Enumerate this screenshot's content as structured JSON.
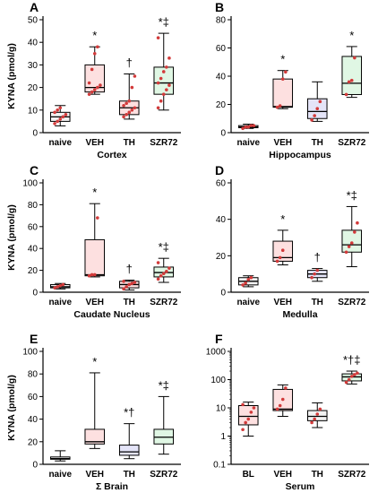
{
  "chart_data": [
    {
      "panel": "A",
      "type": "box",
      "ylabel": "KYNA (pmol/g)",
      "xlabel": "Cortex",
      "ylim": [
        0,
        50
      ],
      "yticks": [
        0,
        10,
        20,
        30,
        40,
        50
      ],
      "categories": [
        "naive",
        "VEH",
        "TH",
        "SZR72"
      ],
      "boxes": [
        {
          "min": 3,
          "q1": 5,
          "median": 7,
          "q3": 9,
          "max": 12,
          "color": "#f2f2f2",
          "points": [
            4,
            5,
            6,
            7,
            8,
            9,
            10,
            11
          ],
          "sig": ""
        },
        {
          "min": 17,
          "q1": 18,
          "median": 20,
          "q3": 30,
          "max": 38,
          "color": "#fde0e0",
          "points": [
            17,
            18,
            19,
            20,
            21,
            22,
            28,
            35,
            38
          ],
          "sig": "*"
        },
        {
          "min": 6,
          "q1": 8,
          "median": 11,
          "q3": 14,
          "max": 26,
          "color": "#fde0e0",
          "points": [
            7,
            8,
            9,
            10,
            11,
            12,
            13,
            14,
            20,
            25
          ],
          "sig": "†"
        },
        {
          "min": 10,
          "q1": 17,
          "median": 22,
          "q3": 29,
          "max": 44,
          "color": "#e0f7e4",
          "points": [
            11,
            14,
            17,
            19,
            21,
            22,
            24,
            27,
            29,
            33,
            42
          ],
          "sig": "*‡"
        }
      ]
    },
    {
      "panel": "B",
      "type": "box",
      "ylabel": "",
      "xlabel": "Hippocampus",
      "ylim": [
        0,
        80
      ],
      "yticks": [
        0,
        20,
        40,
        60,
        80
      ],
      "categories": [
        "naive",
        "VEH",
        "TH",
        "SZR72"
      ],
      "boxes": [
        {
          "min": 3,
          "q1": 3.5,
          "median": 4,
          "q3": 5,
          "max": 6,
          "color": "#f2f2f2",
          "points": [
            3,
            4,
            4,
            5,
            5
          ],
          "sig": ""
        },
        {
          "min": 17,
          "q1": 18,
          "median": 18.5,
          "q3": 38,
          "max": 44,
          "color": "#fde0e0",
          "points": [
            18,
            19,
            38,
            43
          ],
          "sig": "*"
        },
        {
          "min": 8,
          "q1": 10,
          "median": 15,
          "q3": 24,
          "max": 36,
          "color": "#e4e4f8",
          "points": [
            9,
            12,
            17,
            22
          ],
          "sig": ""
        },
        {
          "min": 25,
          "q1": 27,
          "median": 35,
          "q3": 54,
          "max": 61,
          "color": "#e0f7e4",
          "points": [
            27,
            36,
            37,
            53
          ],
          "sig": "*"
        }
      ]
    },
    {
      "panel": "C",
      "type": "box",
      "ylabel": "KYNA (pmol/g)",
      "xlabel": "Caudate Nucleus",
      "ylim": [
        0,
        100
      ],
      "yticks": [
        0,
        20,
        40,
        60,
        80,
        100
      ],
      "categories": [
        "naive",
        "VEH",
        "TH",
        "SZR72"
      ],
      "boxes": [
        {
          "min": 3,
          "q1": 4,
          "median": 5,
          "q3": 7,
          "max": 8,
          "color": "#f2f2f2",
          "points": [
            4,
            5,
            6,
            7
          ],
          "sig": ""
        },
        {
          "min": 14,
          "q1": 15,
          "median": 16,
          "q3": 48,
          "max": 81,
          "color": "#fde0e0",
          "points": [
            15,
            16,
            16,
            68
          ],
          "sig": "*"
        },
        {
          "min": 2,
          "q1": 4,
          "median": 7,
          "q3": 10,
          "max": 11,
          "color": "#fde0e0",
          "points": [
            3,
            5,
            7,
            8,
            9,
            10
          ],
          "sig": "†"
        },
        {
          "min": 9,
          "q1": 14,
          "median": 18,
          "q3": 23,
          "max": 31,
          "color": "#e0f7e4",
          "points": [
            12,
            15,
            17,
            19,
            22,
            27
          ],
          "sig": "*‡"
        }
      ]
    },
    {
      "panel": "D",
      "type": "box",
      "ylabel": "",
      "xlabel": "Medulla",
      "ylim": [
        0,
        60
      ],
      "yticks": [
        0,
        20,
        40,
        60
      ],
      "categories": [
        "naive",
        "VEH",
        "TH",
        "SZR72"
      ],
      "boxes": [
        {
          "min": 3,
          "q1": 4,
          "median": 6,
          "q3": 8,
          "max": 9,
          "color": "#f2f2f2",
          "points": [
            4,
            5,
            7,
            8
          ],
          "sig": ""
        },
        {
          "min": 15,
          "q1": 17,
          "median": 19,
          "q3": 28,
          "max": 34,
          "color": "#fde0e0",
          "points": [
            17,
            19,
            23
          ],
          "sig": "*"
        },
        {
          "min": 6,
          "q1": 8,
          "median": 10,
          "q3": 12,
          "max": 13,
          "color": "#e4e4f8",
          "points": [
            8,
            10,
            12
          ],
          "sig": "†"
        },
        {
          "min": 14,
          "q1": 22,
          "median": 26,
          "q3": 34,
          "max": 47,
          "color": "#e0f7e4",
          "points": [
            22,
            25,
            27,
            33,
            38
          ],
          "sig": "*‡"
        }
      ]
    },
    {
      "panel": "E",
      "type": "box",
      "ylabel": "KYNA (pmol/g)",
      "xlabel": "Σ Brain",
      "ylim": [
        0,
        100
      ],
      "yticks": [
        0,
        20,
        40,
        60,
        80,
        100
      ],
      "categories": [
        "naive",
        "VEH",
        "TH",
        "SZR72"
      ],
      "boxes": [
        {
          "min": 3,
          "q1": 4.5,
          "median": 5,
          "q3": 6.5,
          "max": 12,
          "color": "#f2f2f2",
          "points": [],
          "sig": ""
        },
        {
          "min": 14,
          "q1": 18,
          "median": 20,
          "q3": 31,
          "max": 81,
          "color": "#fde0e0",
          "points": [],
          "sig": "*"
        },
        {
          "min": 5,
          "q1": 8,
          "median": 11,
          "q3": 17,
          "max": 36,
          "color": "#e4e4f8",
          "points": [],
          "sig": "*†"
        },
        {
          "min": 9,
          "q1": 18,
          "median": 24,
          "q3": 31,
          "max": 60,
          "color": "#e0f7e4",
          "points": [],
          "sig": "*‡"
        }
      ]
    },
    {
      "panel": "F",
      "type": "box",
      "scale": "log",
      "ylabel": "",
      "xlabel": "Serum",
      "ylim": [
        0.1,
        1000
      ],
      "yticks": [
        0.1,
        1,
        10,
        100,
        1000
      ],
      "categories": [
        "BL",
        "VEH",
        "TH",
        "SZR72"
      ],
      "boxes": [
        {
          "min": 1,
          "q1": 2.5,
          "median": 5,
          "q3": 12,
          "max": 16,
          "color": "#fde0e0",
          "points": [
            1.7,
            3,
            4,
            7,
            10,
            13
          ],
          "sig": ""
        },
        {
          "min": 5,
          "q1": 8,
          "median": 9,
          "q3": 45,
          "max": 65,
          "color": "#fde0e0",
          "points": [
            9,
            12,
            20,
            50
          ],
          "sig": ""
        },
        {
          "min": 2,
          "q1": 3.5,
          "median": 5,
          "q3": 8,
          "max": 15,
          "color": "#f2f2f2",
          "points": [
            3,
            4,
            6,
            9
          ],
          "sig": ""
        },
        {
          "min": 70,
          "q1": 90,
          "median": 125,
          "q3": 160,
          "max": 200,
          "color": "#e0f7e4",
          "points": [
            80,
            100,
            130,
            150,
            170
          ],
          "sig": "*†‡"
        }
      ]
    }
  ]
}
